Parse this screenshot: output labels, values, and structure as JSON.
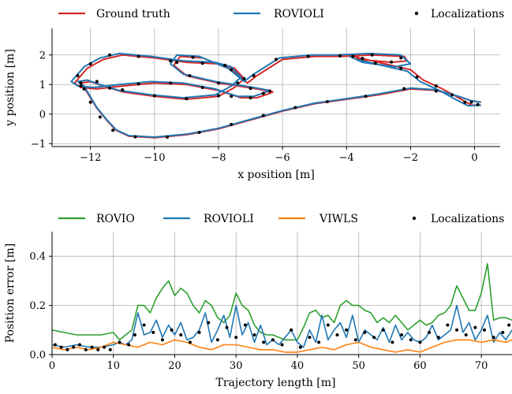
{
  "chart_data": [
    {
      "type": "line",
      "xlabel": "x position [m]",
      "ylabel": "y position [m]",
      "xlim": [
        -13.2,
        0.8
      ],
      "ylim": [
        -1.1,
        2.9
      ],
      "xticks": [
        -12,
        -10,
        -8,
        -6,
        -4,
        -2,
        0
      ],
      "xtick_labels": [
        "−12",
        "−10",
        "−8",
        "−6",
        "−4",
        "−2",
        "0"
      ],
      "yticks": [
        -1,
        0,
        1,
        2
      ],
      "ytick_labels": [
        "−1",
        "0",
        "1",
        "2"
      ],
      "grid": true,
      "legend_position": "top",
      "legend": [
        "Ground truth",
        "ROVIOLI",
        "Localizations"
      ],
      "series": [
        {
          "name": "Ground truth",
          "color": "#d62728",
          "x": [
            0.2,
            -0.1,
            -0.5,
            -1.2,
            -2.0,
            -3.0,
            -4.0,
            -5.0,
            -6.0,
            -7.0,
            -8.0,
            -9.0,
            -10.0,
            -10.8,
            -11.2,
            -11.5,
            -11.8,
            -12.0,
            -12.2,
            -12.3,
            -12.0,
            -11.6,
            -11.0,
            -10.0,
            -9.0,
            -8.0,
            -7.5,
            -7.2,
            -7.5,
            -8.0,
            -9.0,
            -10.0,
            -11.0,
            -11.6,
            -12.1,
            -12.5,
            -12.3,
            -11.8,
            -11.0,
            -10.0,
            -9.0,
            -8.0,
            -7.3,
            -6.8,
            -6.4,
            -6.3,
            -6.8,
            -8.0,
            -9.0,
            -9.4,
            -9.2,
            -8.5,
            -7.6,
            -7.1,
            -6.8,
            -6.0,
            -5.0,
            -4.2,
            -3.2,
            -2.2,
            -2.1,
            -2.6,
            -3.6,
            -3.8,
            -3.6,
            -2.8,
            -2.0,
            -1.6,
            -1.0,
            -0.5,
            -0.1,
            0.2
          ],
          "y": [
            0.4,
            0.45,
            0.6,
            0.8,
            0.85,
            0.65,
            0.5,
            0.35,
            0.1,
            -0.2,
            -0.5,
            -0.7,
            -0.8,
            -0.75,
            -0.55,
            -0.2,
            0.2,
            0.55,
            0.9,
            1.05,
            1.1,
            0.95,
            0.75,
            0.6,
            0.5,
            0.6,
            0.9,
            1.2,
            1.55,
            1.7,
            1.75,
            1.9,
            2.0,
            1.85,
            1.55,
            1.05,
            0.9,
            0.85,
            0.95,
            1.05,
            1.0,
            0.8,
            0.55,
            0.55,
            0.7,
            0.75,
            0.85,
            1.05,
            1.3,
            1.65,
            1.95,
            1.9,
            1.5,
            1.05,
            1.3,
            1.85,
            1.95,
            1.95,
            2.0,
            1.95,
            1.8,
            1.75,
            1.85,
            2.0,
            1.9,
            1.7,
            1.5,
            1.15,
            0.85,
            0.55,
            0.3,
            0.3
          ]
        },
        {
          "name": "ROVIOLI",
          "color": "#1f77b4",
          "x": [
            0.2,
            -0.1,
            -0.5,
            -1.2,
            -2.0,
            -3.0,
            -4.0,
            -5.0,
            -6.0,
            -7.0,
            -8.0,
            -9.0,
            -10.0,
            -10.8,
            -11.2,
            -11.5,
            -11.8,
            -12.0,
            -12.2,
            -12.4,
            -12.1,
            -11.7,
            -11.1,
            -10.1,
            -9.1,
            -8.1,
            -7.6,
            -7.3,
            -7.6,
            -8.1,
            -9.1,
            -10.1,
            -11.1,
            -11.7,
            -12.2,
            -12.6,
            -12.4,
            -11.9,
            -11.1,
            -10.1,
            -9.1,
            -8.1,
            -7.4,
            -6.9,
            -6.5,
            -6.4,
            -6.9,
            -8.1,
            -9.1,
            -9.5,
            -9.3,
            -8.6,
            -7.7,
            -7.2,
            -6.9,
            -6.1,
            -5.1,
            -4.3,
            -3.3,
            -2.3,
            -2.0,
            -2.5,
            -3.5,
            -3.9,
            -3.7,
            -2.9,
            -2.1,
            -1.7,
            -1.1,
            -0.6,
            -0.2,
            0.2
          ],
          "y": [
            0.4,
            0.45,
            0.6,
            0.82,
            0.88,
            0.68,
            0.52,
            0.37,
            0.12,
            -0.18,
            -0.48,
            -0.68,
            -0.78,
            -0.73,
            -0.53,
            -0.18,
            0.22,
            0.58,
            0.95,
            1.1,
            1.15,
            1.0,
            0.8,
            0.65,
            0.55,
            0.65,
            0.95,
            1.25,
            1.6,
            1.75,
            1.8,
            1.95,
            2.05,
            1.9,
            1.6,
            1.1,
            0.95,
            0.9,
            1.0,
            1.1,
            1.05,
            0.85,
            0.6,
            0.6,
            0.75,
            0.8,
            0.9,
            1.1,
            1.35,
            1.7,
            2.0,
            1.95,
            1.55,
            1.1,
            1.35,
            1.9,
            2.0,
            2.0,
            2.05,
            2.0,
            1.7,
            1.6,
            1.75,
            1.95,
            1.85,
            1.65,
            1.45,
            1.1,
            0.8,
            0.5,
            0.28,
            0.3
          ]
        },
        {
          "name": "Localizations",
          "color": "#000000",
          "marker": "dot",
          "x": [
            -0.1,
            -1.2,
            -2.2,
            -3.4,
            -4.6,
            -5.6,
            -6.6,
            -7.6,
            -8.6,
            -9.6,
            -10.6,
            -11.3,
            -11.7,
            -12.0,
            -12.2,
            -12.3,
            -11.8,
            -11.0,
            -10.0,
            -9.0,
            -8.0,
            -7.4,
            -7.6,
            -8.5,
            -9.5,
            -10.5,
            -11.4,
            -12.0,
            -12.4,
            -12.3,
            -11.4,
            -10.5,
            -9.5,
            -8.5,
            -7.6,
            -7.0,
            -6.6,
            -6.4,
            -7.0,
            -8.0,
            -8.9,
            -9.3,
            -8.8,
            -7.8,
            -7.2,
            -6.9,
            -6.2,
            -5.2,
            -4.2,
            -3.2,
            -2.3,
            -2.6,
            -3.5,
            -3.8,
            -3.1,
            -2.3,
            -1.8,
            -1.2,
            -0.7,
            -0.3,
            0.1
          ],
          "y": [
            0.4,
            0.78,
            0.86,
            0.6,
            0.42,
            0.22,
            -0.05,
            -0.35,
            -0.62,
            -0.78,
            -0.77,
            -0.55,
            -0.1,
            0.4,
            0.85,
            1.05,
            1.1,
            0.82,
            0.62,
            0.52,
            0.62,
            1.05,
            1.5,
            1.72,
            1.8,
            1.95,
            2.0,
            1.7,
            1.3,
            0.95,
            0.88,
            1.02,
            1.05,
            0.9,
            0.6,
            0.55,
            0.7,
            0.78,
            0.87,
            1.05,
            1.3,
            1.75,
            1.92,
            1.65,
            1.2,
            1.3,
            1.85,
            1.95,
            1.97,
            2.0,
            1.9,
            1.76,
            1.88,
            1.95,
            1.72,
            1.55,
            1.25,
            0.95,
            0.65,
            0.4,
            0.32
          ]
        }
      ]
    },
    {
      "type": "line",
      "xlabel": "Trajectory length [m]",
      "ylabel": "Position error [m]",
      "xlim": [
        0,
        75
      ],
      "ylim": [
        0,
        0.5
      ],
      "xticks": [
        0,
        10,
        20,
        30,
        40,
        50,
        60,
        70
      ],
      "xtick_labels": [
        "0",
        "10",
        "20",
        "30",
        "40",
        "50",
        "60",
        "70"
      ],
      "yticks": [
        0,
        0.2,
        0.4
      ],
      "ytick_labels": [
        "0.0",
        "0.2",
        "0.4"
      ],
      "grid": true,
      "legend_position": "top",
      "legend": [
        "ROVIO",
        "ROVIOLI",
        "VIWLS",
        "Localizations"
      ],
      "series": [
        {
          "name": "ROVIO",
          "color": "#2ca02c",
          "x": [
            0,
            2,
            4,
            6,
            8,
            10,
            11,
            12,
            13,
            14,
            15,
            16,
            17,
            18,
            19,
            20,
            21,
            22,
            23,
            24,
            25,
            26,
            27,
            28,
            29,
            30,
            31,
            32,
            33,
            34,
            35,
            36,
            37,
            38,
            39,
            40,
            41,
            42,
            43,
            44,
            45,
            46,
            47,
            48,
            49,
            50,
            51,
            52,
            53,
            54,
            55,
            56,
            57,
            58,
            59,
            60,
            61,
            62,
            63,
            64,
            65,
            66,
            67,
            68,
            69,
            70,
            71,
            72,
            73,
            74,
            75
          ],
          "y": [
            0.1,
            0.09,
            0.08,
            0.08,
            0.08,
            0.09,
            0.06,
            0.08,
            0.1,
            0.2,
            0.2,
            0.17,
            0.23,
            0.27,
            0.3,
            0.24,
            0.27,
            0.25,
            0.2,
            0.17,
            0.22,
            0.2,
            0.15,
            0.13,
            0.16,
            0.25,
            0.2,
            0.18,
            0.12,
            0.09,
            0.08,
            0.08,
            0.07,
            0.06,
            0.06,
            0.06,
            0.11,
            0.17,
            0.18,
            0.15,
            0.16,
            0.13,
            0.2,
            0.22,
            0.2,
            0.2,
            0.18,
            0.17,
            0.13,
            0.15,
            0.13,
            0.16,
            0.13,
            0.1,
            0.12,
            0.14,
            0.12,
            0.13,
            0.16,
            0.17,
            0.2,
            0.28,
            0.23,
            0.18,
            0.18,
            0.25,
            0.37,
            0.14,
            0.15,
            0.15,
            0.14
          ]
        },
        {
          "name": "ROVIOLI",
          "color": "#1f77b4",
          "x": [
            0,
            2,
            4,
            6,
            8,
            10,
            11,
            12,
            13,
            14,
            15,
            16,
            17,
            18,
            19,
            20,
            21,
            22,
            23,
            24,
            25,
            26,
            27,
            28,
            29,
            30,
            31,
            32,
            33,
            34,
            35,
            36,
            37,
            38,
            39,
            40,
            41,
            42,
            43,
            44,
            45,
            46,
            47,
            48,
            49,
            50,
            51,
            52,
            53,
            54,
            55,
            56,
            57,
            58,
            59,
            60,
            61,
            62,
            63,
            64,
            65,
            66,
            67,
            68,
            69,
            70,
            71,
            72,
            73,
            74,
            75
          ],
          "y": [
            0.04,
            0.03,
            0.04,
            0.03,
            0.03,
            0.04,
            0.05,
            0.04,
            0.06,
            0.17,
            0.08,
            0.09,
            0.14,
            0.07,
            0.12,
            0.08,
            0.13,
            0.06,
            0.07,
            0.1,
            0.17,
            0.05,
            0.1,
            0.16,
            0.07,
            0.2,
            0.08,
            0.13,
            0.05,
            0.12,
            0.04,
            0.06,
            0.04,
            0.07,
            0.1,
            0.05,
            0.03,
            0.1,
            0.05,
            0.16,
            0.06,
            0.1,
            0.13,
            0.07,
            0.16,
            0.05,
            0.1,
            0.08,
            0.06,
            0.11,
            0.05,
            0.12,
            0.06,
            0.09,
            0.06,
            0.05,
            0.07,
            0.12,
            0.06,
            0.08,
            0.1,
            0.2,
            0.09,
            0.13,
            0.06,
            0.1,
            0.16,
            0.05,
            0.09,
            0.06,
            0.1
          ]
        },
        {
          "name": "VIWLS",
          "color": "#ff7f0e",
          "x": [
            0,
            2,
            4,
            6,
            8,
            10,
            12,
            14,
            16,
            18,
            20,
            22,
            24,
            26,
            28,
            30,
            32,
            34,
            36,
            38,
            40,
            42,
            44,
            46,
            48,
            50,
            52,
            54,
            56,
            58,
            60,
            62,
            64,
            66,
            68,
            70,
            72,
            74,
            75
          ],
          "y": [
            0.03,
            0.02,
            0.03,
            0.02,
            0.03,
            0.05,
            0.04,
            0.03,
            0.05,
            0.04,
            0.06,
            0.05,
            0.03,
            0.02,
            0.04,
            0.04,
            0.03,
            0.02,
            0.02,
            0.01,
            0.01,
            0.02,
            0.03,
            0.02,
            0.04,
            0.05,
            0.03,
            0.02,
            0.01,
            0.02,
            0.01,
            0.03,
            0.05,
            0.06,
            0.06,
            0.05,
            0.06,
            0.05,
            0.06
          ]
        },
        {
          "name": "Localizations",
          "color": "#000000",
          "marker": "dot",
          "x": [
            0.5,
            1.5,
            2.5,
            3.5,
            4.5,
            5.5,
            6.5,
            7.5,
            8.5,
            9.5,
            11,
            12.5,
            13.5,
            15,
            16.5,
            18,
            19.5,
            21,
            22.5,
            24,
            25.5,
            27,
            28.5,
            30,
            31.5,
            33,
            34.5,
            36,
            37.5,
            39,
            40.5,
            42,
            43.5,
            45,
            46.5,
            48,
            49.5,
            51,
            52.5,
            54,
            55.5,
            57,
            58.5,
            60,
            61.5,
            63,
            64.5,
            66,
            67.5,
            69,
            70.5,
            72,
            73.5,
            74.5
          ],
          "y": [
            0.04,
            0.03,
            0.02,
            0.03,
            0.04,
            0.02,
            0.03,
            0.02,
            0.03,
            0.02,
            0.05,
            0.04,
            0.08,
            0.12,
            0.09,
            0.06,
            0.1,
            0.08,
            0.05,
            0.09,
            0.13,
            0.06,
            0.11,
            0.07,
            0.12,
            0.08,
            0.05,
            0.06,
            0.04,
            0.1,
            0.03,
            0.07,
            0.05,
            0.12,
            0.08,
            0.1,
            0.06,
            0.09,
            0.07,
            0.1,
            0.05,
            0.08,
            0.06,
            0.05,
            0.09,
            0.07,
            0.12,
            0.1,
            0.08,
            0.11,
            0.1,
            0.07,
            0.09,
            0.12
          ]
        }
      ]
    }
  ]
}
